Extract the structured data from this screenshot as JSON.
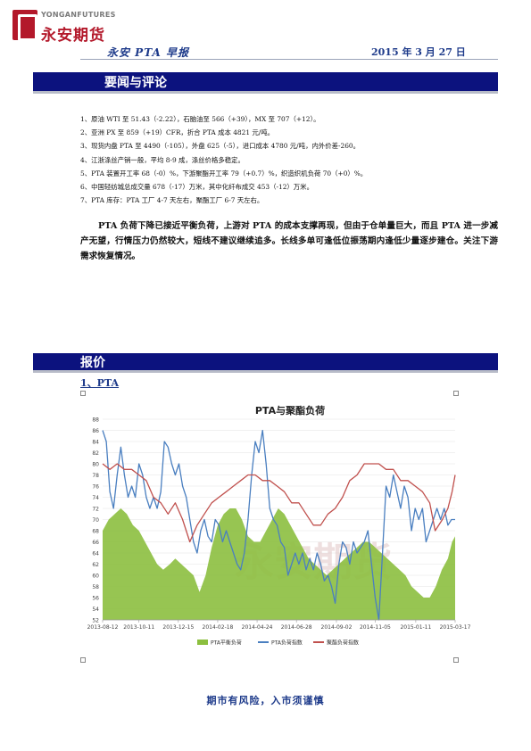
{
  "header": {
    "logo_en": "YONGANFUTURES",
    "logo_cn": "永安期货",
    "title": "永安 PTA 早报",
    "date": "2015 年 3 月 27 日"
  },
  "section1": {
    "title": "要闻与评论"
  },
  "news": [
    "1、原油 WTI 至 51.43（-2.22），石脑油至 566（+39），MX 至 707（+12）。",
    "2、亚洲 PX 至 859（+19）CFR，折合 PTA 成本 4821 元/吨。",
    "3、现货内盘 PTA 至 4490（-105），外盘 625（-5），进口成本 4780 元/吨，内外价差-260。",
    "4、江浙涤丝产销一般，平均 8-9 成，涤丝价格多稳定。",
    "5、PTA 装置开工率 68（-0）%，下游聚酯开工率 79（+0.7）%，织造织机负荷 70（+0）%。",
    "6、中国轻纺城总成交量 678（-17）万米，其中化纤布成交 453（-12）万米。",
    "7、PTA 库存：PTA 工厂 4-7 天左右，聚酯工厂 6-7 天左右。"
  ],
  "commentary": "PTA 负荷下降已接近平衡负荷，上游对 PTA 的成本支撑再现，但由于仓单量巨大，而且 PTA 进一步减产无望，行情压力仍然较大，短线不建议继续追多。长线多单可逢低位振荡期内逢低少量逐步建仓。关注下游需求恢复情况。",
  "section2": {
    "title": "报价"
  },
  "subsection": "1、PTA",
  "footer": "期市有风险，入市须谨慎",
  "watermark": "永安期货",
  "colors": {
    "band": "#0c127e",
    "accent_text": "#1d3a8a",
    "logo_red": "#b3182a",
    "area": "#8cbf3f",
    "blue": "#4a7fc0",
    "red": "#c0504d"
  },
  "chart_data": {
    "type": "line",
    "title": "PTA与聚酯负荷",
    "ylim": [
      52,
      88
    ],
    "yticks": [
      52,
      54,
      56,
      58,
      60,
      62,
      64,
      66,
      68,
      70,
      72,
      74,
      76,
      78,
      80,
      82,
      84,
      86,
      88
    ],
    "xlim": [
      "2013-08-12",
      "2015-03-17"
    ],
    "xticks": [
      "2013-08-12",
      "2013-10-11",
      "2013-12-15",
      "2014-02-18",
      "2014-04-24",
      "2014-06-28",
      "2014-09-02",
      "2014-11-05",
      "2015-01-11",
      "2015-03-17"
    ],
    "series": [
      {
        "name": "PTA平衡负荷",
        "kind": "area",
        "color": "#8cbf3f",
        "points": [
          [
            "2013-08-12",
            68
          ],
          [
            "2013-08-22",
            70
          ],
          [
            "2013-09-01",
            71
          ],
          [
            "2013-09-11",
            72
          ],
          [
            "2013-09-21",
            71
          ],
          [
            "2013-10-01",
            69
          ],
          [
            "2013-10-11",
            68
          ],
          [
            "2013-10-21",
            66
          ],
          [
            "2013-10-31",
            64
          ],
          [
            "2013-11-10",
            62
          ],
          [
            "2013-11-20",
            61
          ],
          [
            "2013-12-01",
            62
          ],
          [
            "2013-12-10",
            63
          ],
          [
            "2013-12-20",
            62
          ],
          [
            "2013-12-30",
            61
          ],
          [
            "2014-01-09",
            60
          ],
          [
            "2014-01-19",
            57
          ],
          [
            "2014-01-29",
            60
          ],
          [
            "2014-02-08",
            65
          ],
          [
            "2014-02-18",
            69
          ],
          [
            "2014-02-28",
            71
          ],
          [
            "2014-03-10",
            72
          ],
          [
            "2014-03-20",
            72
          ],
          [
            "2014-03-30",
            70
          ],
          [
            "2014-04-09",
            67
          ],
          [
            "2014-04-19",
            66
          ],
          [
            "2014-04-29",
            66
          ],
          [
            "2014-05-09",
            68
          ],
          [
            "2014-05-19",
            70
          ],
          [
            "2014-05-29",
            72
          ],
          [
            "2014-06-08",
            71
          ],
          [
            "2014-06-18",
            69
          ],
          [
            "2014-06-28",
            67
          ],
          [
            "2014-07-08",
            65
          ],
          [
            "2014-07-18",
            63
          ],
          [
            "2014-07-28",
            62
          ],
          [
            "2014-08-07",
            61
          ],
          [
            "2014-08-17",
            60
          ],
          [
            "2014-08-27",
            61
          ],
          [
            "2014-09-06",
            62
          ],
          [
            "2014-09-16",
            63
          ],
          [
            "2014-09-26",
            64
          ],
          [
            "2014-10-06",
            65
          ],
          [
            "2014-10-16",
            66
          ],
          [
            "2014-10-26",
            66
          ],
          [
            "2014-11-05",
            65
          ],
          [
            "2014-11-15",
            64
          ],
          [
            "2014-11-25",
            63
          ],
          [
            "2014-12-05",
            62
          ],
          [
            "2014-12-15",
            61
          ],
          [
            "2014-12-25",
            60
          ],
          [
            "2015-01-04",
            58
          ],
          [
            "2015-01-14",
            57
          ],
          [
            "2015-01-24",
            56
          ],
          [
            "2015-02-03",
            56
          ],
          [
            "2015-02-13",
            58
          ],
          [
            "2015-02-23",
            61
          ],
          [
            "2015-03-05",
            63
          ],
          [
            "2015-03-12",
            66
          ],
          [
            "2015-03-17",
            67
          ]
        ]
      },
      {
        "name": "PTA负荷指数",
        "kind": "line",
        "color": "#4a7fc0",
        "points": [
          [
            "2013-08-12",
            86
          ],
          [
            "2013-08-18",
            84
          ],
          [
            "2013-08-24",
            75
          ],
          [
            "2013-08-30",
            72
          ],
          [
            "2013-09-05",
            78
          ],
          [
            "2013-09-11",
            83
          ],
          [
            "2013-09-17",
            78
          ],
          [
            "2013-09-23",
            74
          ],
          [
            "2013-09-29",
            76
          ],
          [
            "2013-10-05",
            74
          ],
          [
            "2013-10-11",
            80
          ],
          [
            "2013-10-17",
            78
          ],
          [
            "2013-10-23",
            74
          ],
          [
            "2013-10-29",
            72
          ],
          [
            "2013-11-04",
            74
          ],
          [
            "2013-11-10",
            72
          ],
          [
            "2013-11-16",
            75
          ],
          [
            "2013-11-22",
            84
          ],
          [
            "2013-11-28",
            83
          ],
          [
            "2013-12-04",
            80
          ],
          [
            "2013-12-10",
            78
          ],
          [
            "2013-12-16",
            80
          ],
          [
            "2013-12-22",
            76
          ],
          [
            "2013-12-28",
            74
          ],
          [
            "2014-01-03",
            70
          ],
          [
            "2014-01-09",
            66
          ],
          [
            "2014-01-15",
            64
          ],
          [
            "2014-01-21",
            68
          ],
          [
            "2014-01-27",
            70
          ],
          [
            "2014-02-02",
            67
          ],
          [
            "2014-02-08",
            66
          ],
          [
            "2014-02-14",
            70
          ],
          [
            "2014-02-20",
            69
          ],
          [
            "2014-02-26",
            66
          ],
          [
            "2014-03-04",
            68
          ],
          [
            "2014-03-10",
            66
          ],
          [
            "2014-03-16",
            64
          ],
          [
            "2014-03-22",
            62
          ],
          [
            "2014-03-28",
            61
          ],
          [
            "2014-04-03",
            64
          ],
          [
            "2014-04-09",
            70
          ],
          [
            "2014-04-15",
            78
          ],
          [
            "2014-04-21",
            84
          ],
          [
            "2014-04-27",
            82
          ],
          [
            "2014-05-03",
            86
          ],
          [
            "2014-05-09",
            80
          ],
          [
            "2014-05-15",
            72
          ],
          [
            "2014-05-21",
            70
          ],
          [
            "2014-05-27",
            69
          ],
          [
            "2014-06-02",
            66
          ],
          [
            "2014-06-08",
            65
          ],
          [
            "2014-06-14",
            60
          ],
          [
            "2014-06-20",
            62
          ],
          [
            "2014-06-26",
            64
          ],
          [
            "2014-07-02",
            62
          ],
          [
            "2014-07-08",
            64
          ],
          [
            "2014-07-14",
            61
          ],
          [
            "2014-07-20",
            63
          ],
          [
            "2014-07-26",
            61
          ],
          [
            "2014-08-01",
            64
          ],
          [
            "2014-08-07",
            62
          ],
          [
            "2014-08-13",
            59
          ],
          [
            "2014-08-19",
            60
          ],
          [
            "2014-08-25",
            58
          ],
          [
            "2014-08-31",
            55
          ],
          [
            "2014-09-06",
            62
          ],
          [
            "2014-09-12",
            66
          ],
          [
            "2014-09-18",
            65
          ],
          [
            "2014-09-24",
            62
          ],
          [
            "2014-09-30",
            66
          ],
          [
            "2014-10-06",
            64
          ],
          [
            "2014-10-12",
            65
          ],
          [
            "2014-10-18",
            66
          ],
          [
            "2014-10-24",
            68
          ],
          [
            "2014-10-30",
            62
          ],
          [
            "2014-11-05",
            56
          ],
          [
            "2014-11-11",
            52
          ],
          [
            "2014-11-17",
            64
          ],
          [
            "2014-11-23",
            76
          ],
          [
            "2014-11-29",
            74
          ],
          [
            "2014-12-05",
            78
          ],
          [
            "2014-12-11",
            75
          ],
          [
            "2014-12-17",
            72
          ],
          [
            "2014-12-23",
            76
          ],
          [
            "2014-12-29",
            74
          ],
          [
            "2015-01-04",
            68
          ],
          [
            "2015-01-10",
            72
          ],
          [
            "2015-01-16",
            70
          ],
          [
            "2015-01-22",
            72
          ],
          [
            "2015-01-28",
            66
          ],
          [
            "2015-02-03",
            68
          ],
          [
            "2015-02-09",
            70
          ],
          [
            "2015-02-15",
            72
          ],
          [
            "2015-02-21",
            70
          ],
          [
            "2015-02-27",
            72
          ],
          [
            "2015-03-05",
            69
          ],
          [
            "2015-03-11",
            70
          ],
          [
            "2015-03-17",
            70
          ]
        ]
      },
      {
        "name": "聚酯负荷指数",
        "kind": "line",
        "color": "#c0504d",
        "points": [
          [
            "2013-08-12",
            80
          ],
          [
            "2013-08-24",
            79
          ],
          [
            "2013-09-05",
            80
          ],
          [
            "2013-09-17",
            79
          ],
          [
            "2013-09-29",
            79
          ],
          [
            "2013-10-11",
            78
          ],
          [
            "2013-10-23",
            77
          ],
          [
            "2013-11-04",
            74
          ],
          [
            "2013-11-16",
            73
          ],
          [
            "2013-11-28",
            71
          ],
          [
            "2013-12-10",
            73
          ],
          [
            "2013-12-22",
            70
          ],
          [
            "2014-01-03",
            66
          ],
          [
            "2014-01-15",
            69
          ],
          [
            "2014-01-27",
            71
          ],
          [
            "2014-02-08",
            73
          ],
          [
            "2014-02-20",
            74
          ],
          [
            "2014-03-04",
            75
          ],
          [
            "2014-03-16",
            76
          ],
          [
            "2014-03-28",
            77
          ],
          [
            "2014-04-09",
            78
          ],
          [
            "2014-04-21",
            78
          ],
          [
            "2014-05-03",
            77
          ],
          [
            "2014-05-15",
            77
          ],
          [
            "2014-05-27",
            76
          ],
          [
            "2014-06-08",
            75
          ],
          [
            "2014-06-20",
            73
          ],
          [
            "2014-07-02",
            73
          ],
          [
            "2014-07-14",
            71
          ],
          [
            "2014-07-26",
            69
          ],
          [
            "2014-08-07",
            69
          ],
          [
            "2014-08-19",
            71
          ],
          [
            "2014-08-31",
            72
          ],
          [
            "2014-09-12",
            74
          ],
          [
            "2014-09-24",
            77
          ],
          [
            "2014-10-06",
            78
          ],
          [
            "2014-10-18",
            80
          ],
          [
            "2014-10-30",
            80
          ],
          [
            "2014-11-11",
            80
          ],
          [
            "2014-11-23",
            79
          ],
          [
            "2014-12-05",
            79
          ],
          [
            "2014-12-17",
            77
          ],
          [
            "2014-12-29",
            77
          ],
          [
            "2015-01-10",
            76
          ],
          [
            "2015-01-22",
            75
          ],
          [
            "2015-02-03",
            73
          ],
          [
            "2015-02-12",
            68
          ],
          [
            "2015-02-24",
            70
          ],
          [
            "2015-03-05",
            72
          ],
          [
            "2015-03-12",
            75
          ],
          [
            "2015-03-17",
            78
          ]
        ]
      }
    ]
  }
}
